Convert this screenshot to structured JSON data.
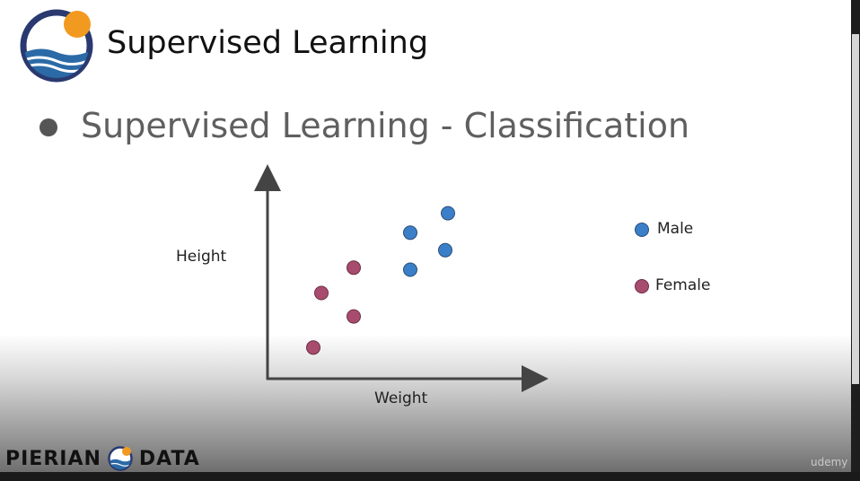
{
  "slide": {
    "title": "Supervised Learning",
    "bullet": "Supervised Learning - Classification"
  },
  "footer": {
    "brand_left": "PIERIAN",
    "brand_right": "DATA",
    "watermark": "udemy"
  },
  "colors": {
    "male": "#3a7fc8",
    "female": "#a84c6e",
    "logo_ring": "#2a3a70",
    "logo_sun": "#f29a1f",
    "logo_wave": "#2b6aa6"
  },
  "chart_data": {
    "type": "scatter",
    "xlabel": "Weight",
    "ylabel": "Height",
    "legend_placement": "right",
    "grid": false,
    "xlim": [
      0,
      10
    ],
    "ylim": [
      0,
      10
    ],
    "series": [
      {
        "name": "Male",
        "color": "#3a7fc8",
        "points": [
          {
            "x": 6.7,
            "y": 8.5
          },
          {
            "x": 5.3,
            "y": 7.5
          },
          {
            "x": 6.6,
            "y": 6.6
          },
          {
            "x": 5.3,
            "y": 5.6
          }
        ]
      },
      {
        "name": "Female",
        "color": "#a84c6e",
        "points": [
          {
            "x": 3.2,
            "y": 5.7
          },
          {
            "x": 2.0,
            "y": 4.4
          },
          {
            "x": 3.2,
            "y": 3.2
          },
          {
            "x": 1.7,
            "y": 1.6
          }
        ]
      }
    ]
  }
}
